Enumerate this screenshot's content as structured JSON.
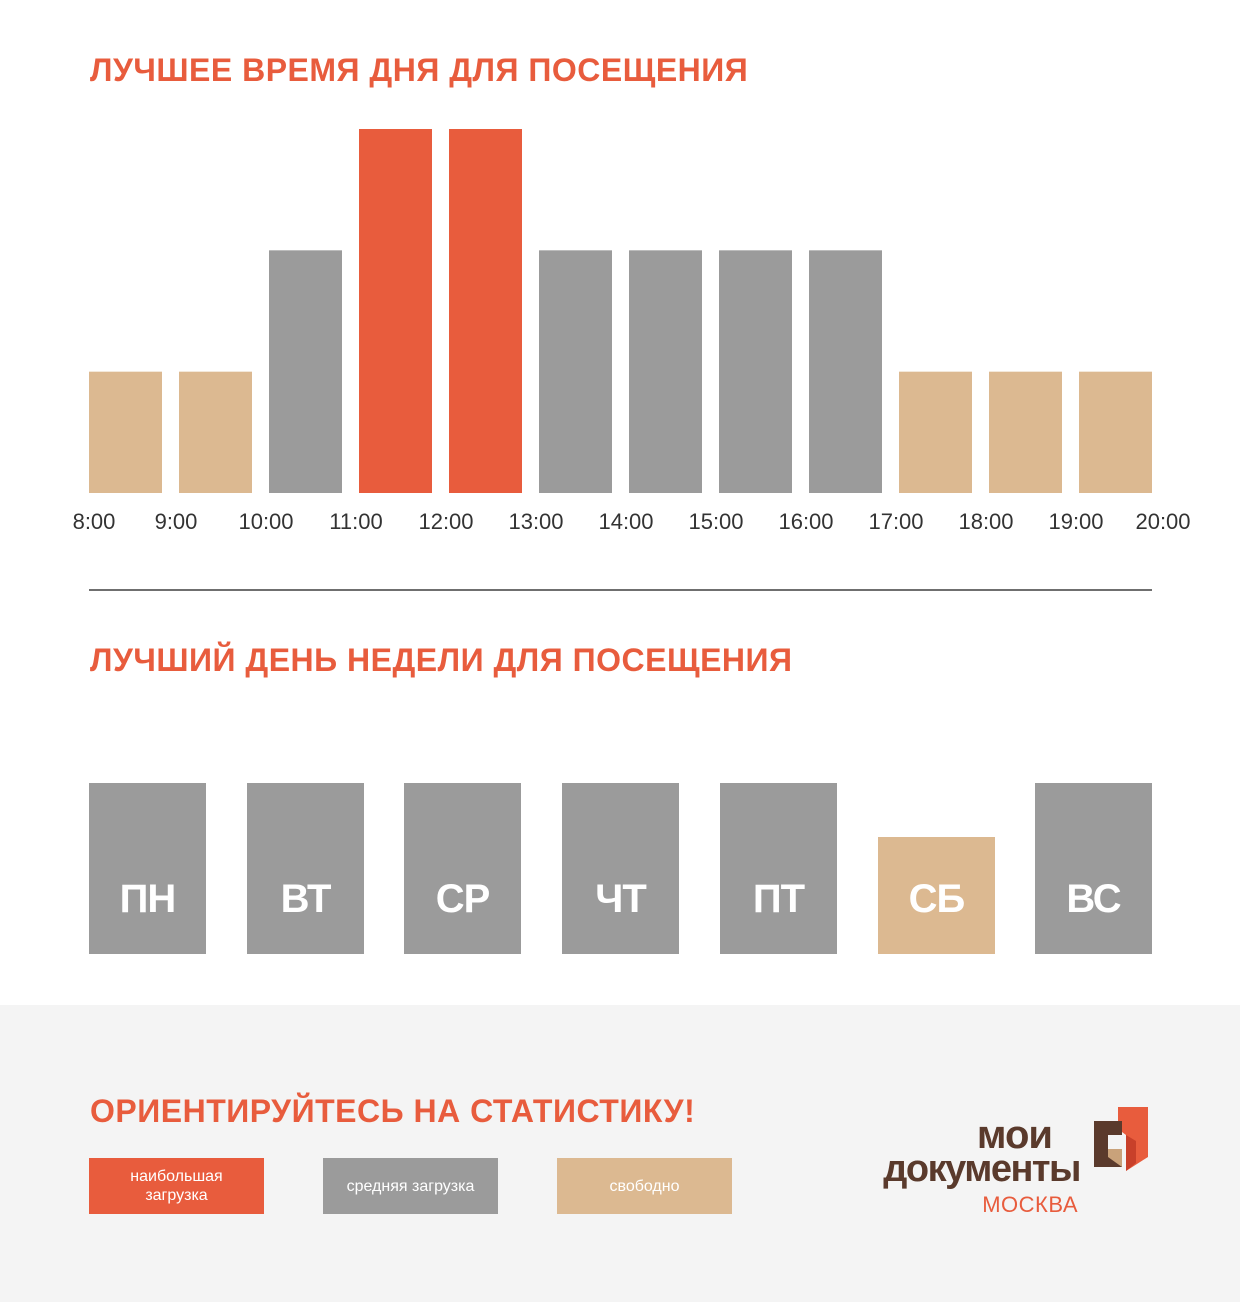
{
  "colors": {
    "accent": "#e85c3d",
    "busy": "#e85c3d",
    "medium": "#9b9b9b",
    "free": "#dcb991",
    "logo_dark": "#5a3a2c"
  },
  "chart_data": [
    {
      "type": "bar",
      "title": "ЛУЧШЕЕ ВРЕМЯ ДНЯ ДЛЯ ПОСЕЩЕНИЯ",
      "tick_labels": [
        "8:00",
        "9:00",
        "10:00",
        "11:00",
        "12:00",
        "13:00",
        "14:00",
        "15:00",
        "16:00",
        "17:00",
        "18:00",
        "19:00",
        "20:00"
      ],
      "values": [
        1,
        1,
        2,
        3,
        3,
        2,
        2,
        2,
        2,
        1,
        1,
        1
      ],
      "levels": [
        "free",
        "free",
        "medium",
        "busy",
        "busy",
        "medium",
        "medium",
        "medium",
        "medium",
        "free",
        "free",
        "free"
      ],
      "ylim": [
        0,
        3
      ],
      "grid": false
    },
    {
      "type": "bar",
      "title": "ЛУЧШИЙ ДЕНЬ НЕДЕЛИ ДЛЯ ПОСЕЩЕНИЯ",
      "categories": [
        "ПН",
        "ВТ",
        "СР",
        "ЧТ",
        "ПТ",
        "СБ",
        "ВС"
      ],
      "values": [
        2,
        2,
        2,
        2,
        2,
        1,
        2
      ],
      "levels": [
        "medium",
        "medium",
        "medium",
        "medium",
        "medium",
        "free",
        "medium"
      ],
      "ylim": [
        0,
        2
      ],
      "grid": false
    }
  ],
  "footer": {
    "title": "ОРИЕНТИРУЙТЕСЬ НА СТАТИСТИКУ!",
    "legend": [
      {
        "label": "наибольшая загрузка",
        "level": "busy"
      },
      {
        "label": "средняя загрузка",
        "level": "medium"
      },
      {
        "label": "свободно",
        "level": "free"
      }
    ]
  },
  "logo": {
    "line1": "мои",
    "line2": "документы",
    "city": "МОСКВА"
  }
}
